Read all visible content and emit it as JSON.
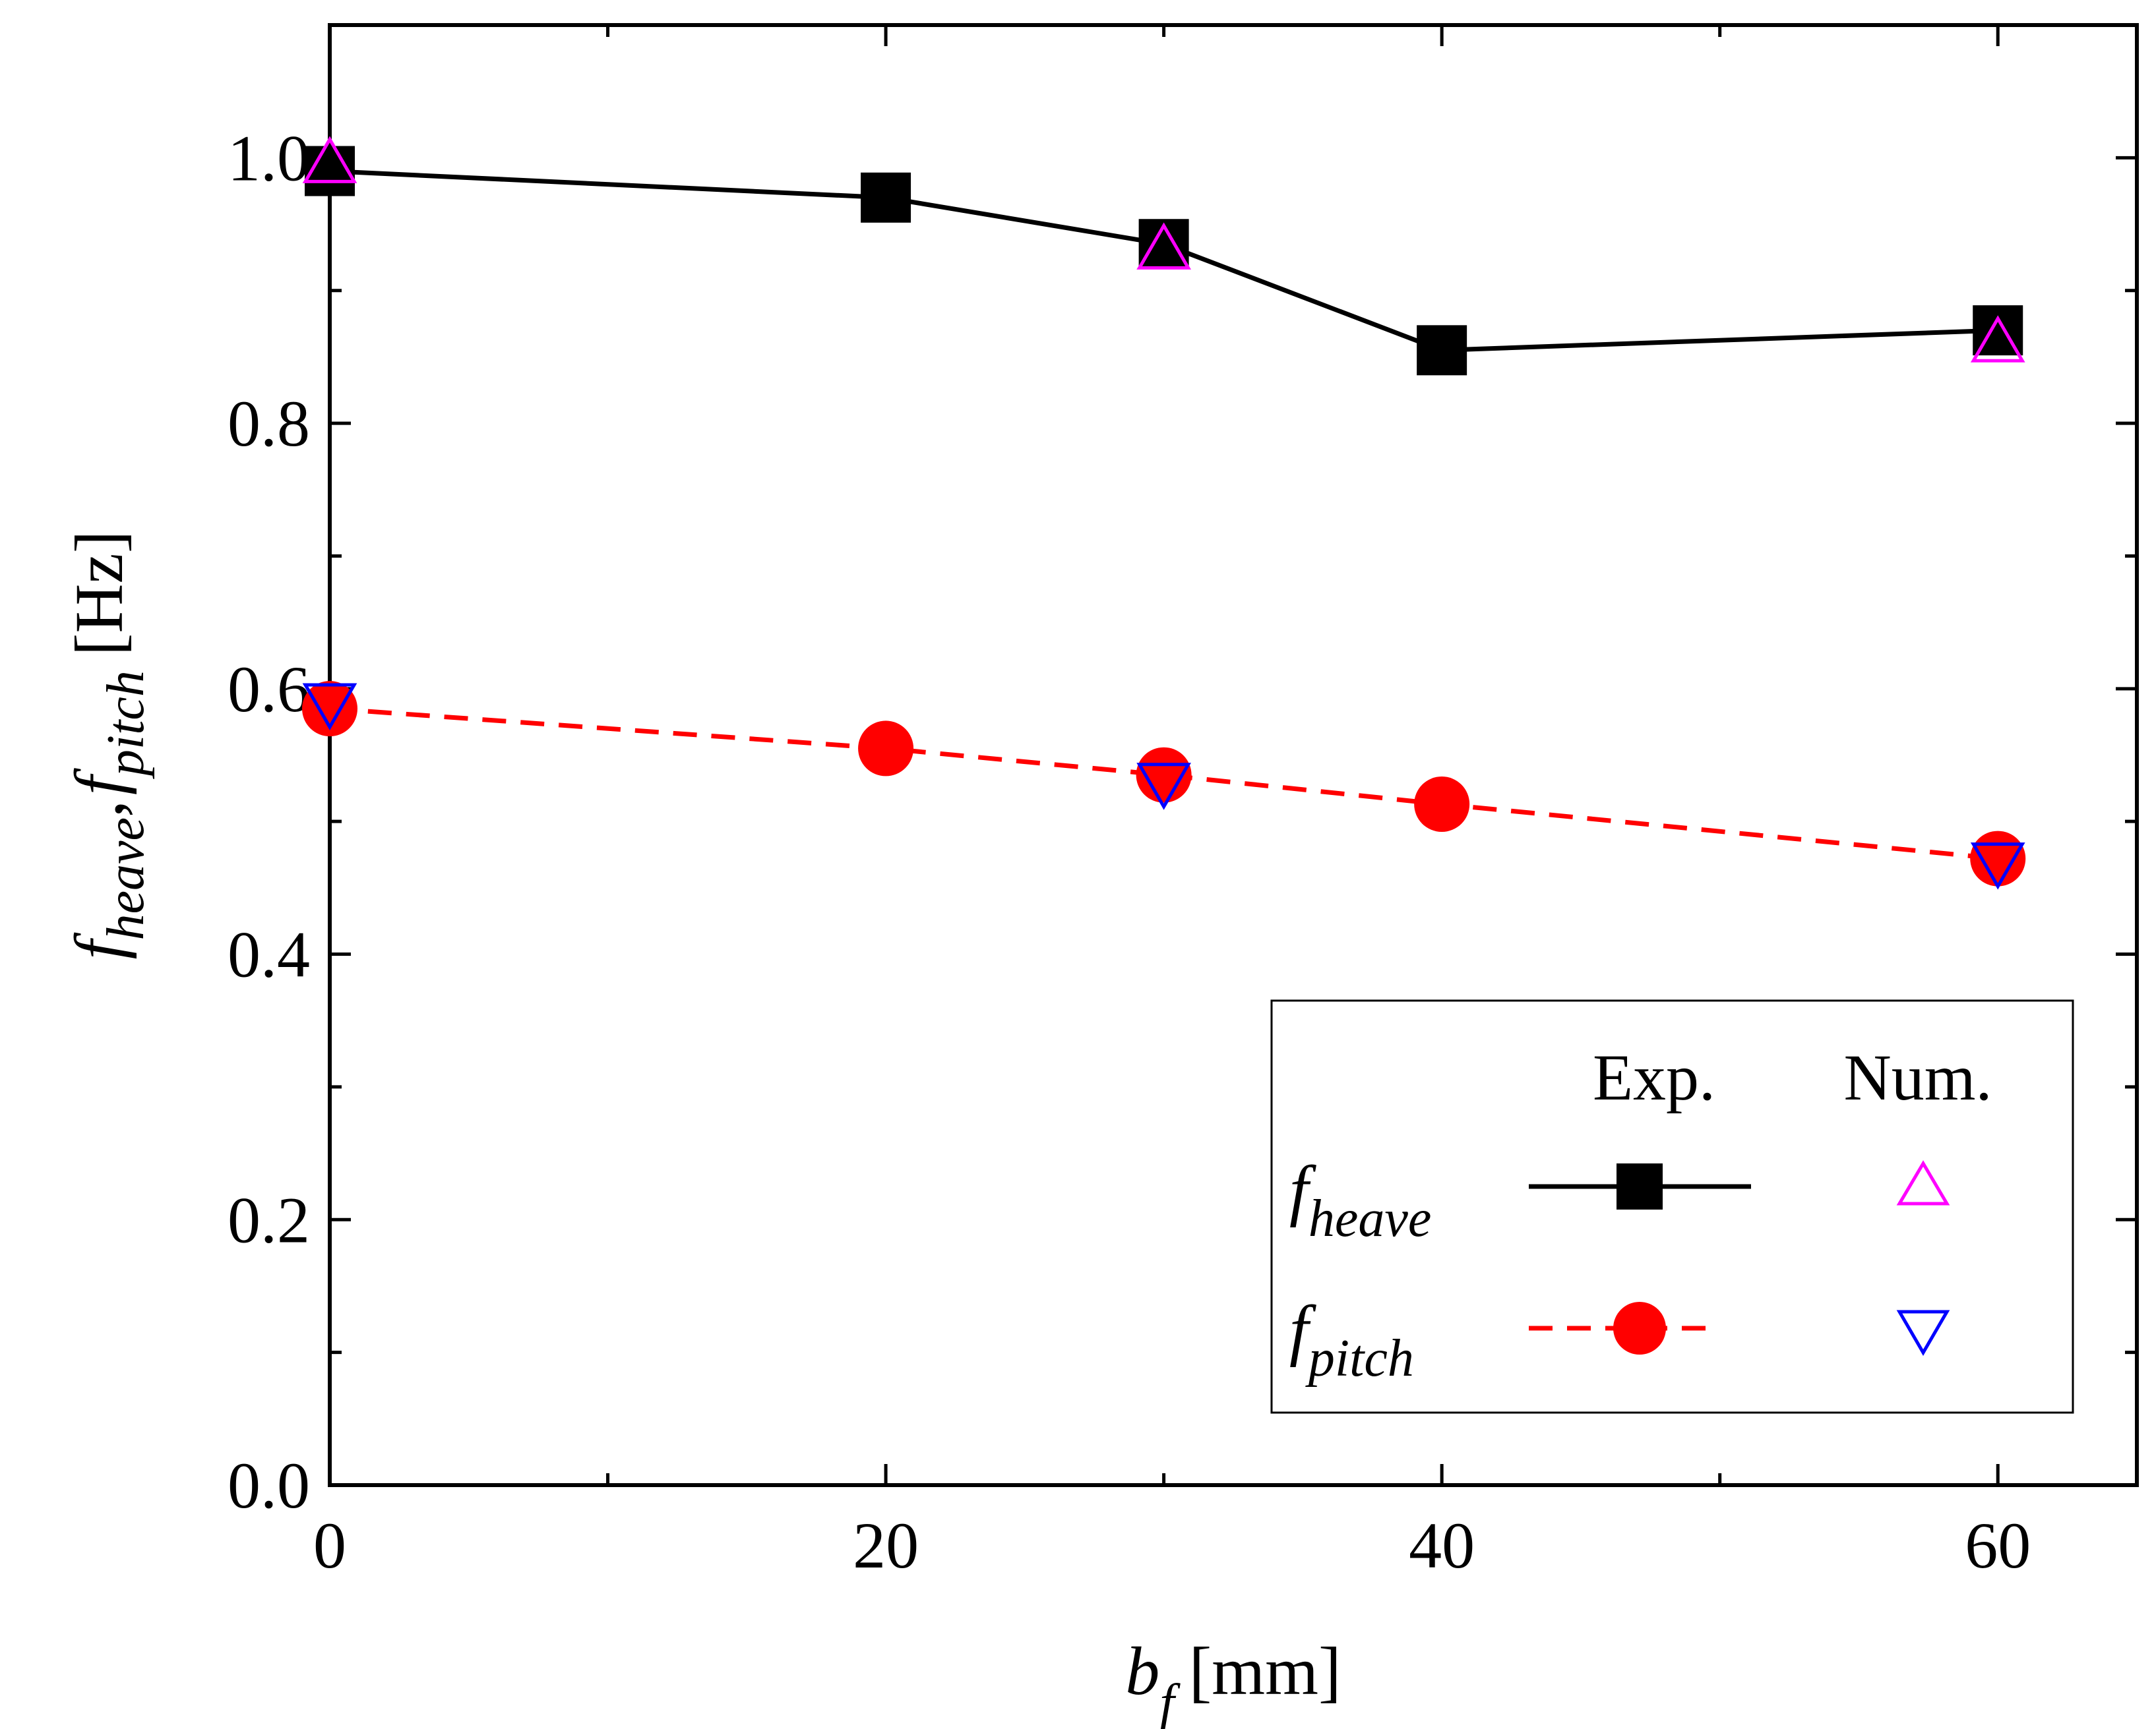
{
  "chart_data": {
    "type": "line",
    "xlabel": {
      "main": "b",
      "sub": "f",
      "unit": "[mm]"
    },
    "ylabel": {
      "main1": "f",
      "sub1": "heave",
      "sep": ",",
      "main2": "f",
      "sub2": "pitch",
      "unit": "[Hz]"
    },
    "xlim": [
      0,
      65
    ],
    "ylim": [
      0,
      1.1
    ],
    "x_ticks": [
      0,
      20,
      40,
      60
    ],
    "x_tick_labels": [
      "0",
      "20",
      "40",
      "60"
    ],
    "x_minor_ticks": [
      10,
      30,
      50
    ],
    "y_ticks": [
      0.0,
      0.2,
      0.4,
      0.6,
      0.8,
      1.0
    ],
    "y_tick_labels": [
      "0.0",
      "0.2",
      "0.4",
      "0.6",
      "0.8",
      "1.0"
    ],
    "y_minor_ticks": [
      0.1,
      0.3,
      0.5,
      0.7,
      0.9
    ],
    "grid": false,
    "legend": {
      "placement": "bottom-right",
      "col_headers": [
        "Exp.",
        "Num."
      ],
      "rows": [
        {
          "symbol": "f",
          "sub": "heave"
        },
        {
          "symbol": "f",
          "sub": "pitch"
        }
      ]
    },
    "series": [
      {
        "key": "heave_exp",
        "marker": "square",
        "line": "solid",
        "color": "#000000",
        "x": [
          0,
          20,
          30,
          40,
          60
        ],
        "y": [
          0.99,
          0.97,
          0.935,
          0.855,
          0.87
        ]
      },
      {
        "key": "pitch_exp",
        "marker": "circle",
        "line": "dashed",
        "color": "#ff0000",
        "x": [
          0,
          20,
          30,
          40,
          60
        ],
        "y": [
          0.585,
          0.555,
          0.535,
          0.513,
          0.472
        ]
      },
      {
        "key": "heave_num",
        "marker": "triangle-up",
        "line": "none",
        "color": "#ff00ff",
        "x": [
          0,
          30,
          60
        ],
        "y": [
          0.995,
          0.93,
          0.86
        ]
      },
      {
        "key": "pitch_num",
        "marker": "triangle-down",
        "line": "none",
        "color": "#0000ff",
        "x": [
          0,
          30,
          60
        ],
        "y": [
          0.59,
          0.53,
          0.47
        ]
      }
    ]
  }
}
